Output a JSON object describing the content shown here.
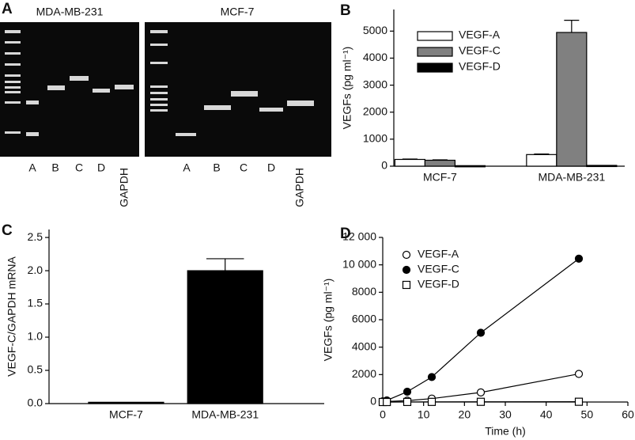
{
  "gel_panel": {
    "panel_label": "A",
    "groups": [
      {
        "title": "MDA-MB-231",
        "lanes": [
          "A",
          "B",
          "C",
          "D",
          "GAPDH"
        ]
      },
      {
        "title": "MCF-7",
        "lanes": [
          "A",
          "B",
          "C",
          "D",
          "GAPDH"
        ]
      }
    ]
  },
  "chart_data": [
    {
      "type": "bar",
      "panel_label": "B",
      "y_label": "VEGFs (pg ml⁻¹)",
      "categories": [
        "MCF-7",
        "MDA-MB-231"
      ],
      "series": [
        {
          "name": "VEGF-A",
          "color": "#ffffff",
          "values": [
            250,
            430
          ],
          "errors": [
            15,
            20
          ]
        },
        {
          "name": "VEGF-C",
          "color": "#808080",
          "values": [
            220,
            4950
          ],
          "errors": [
            15,
            450
          ]
        },
        {
          "name": "VEGF-D",
          "color": "#000000",
          "values": [
            20,
            30
          ],
          "errors": [
            0,
            0
          ]
        }
      ],
      "ylim": [
        0,
        5800
      ],
      "yticks": [
        0,
        1000,
        2000,
        3000,
        4000,
        5000
      ]
    },
    {
      "type": "bar",
      "panel_label": "C",
      "y_label": "VEGF-C/GAPDH mRNA",
      "categories": [
        "MCF-7",
        "MDA-MB-231"
      ],
      "series": [
        {
          "color": "#000000",
          "values": [
            0.02,
            2.0
          ],
          "errors": [
            0,
            0.18
          ]
        }
      ],
      "ylim": [
        0,
        2.62
      ],
      "yticks": [
        {
          "value": 0,
          "label": "0.0"
        },
        {
          "value": 0.5,
          "label": "0.5"
        },
        {
          "value": 1,
          "label": "1.0"
        },
        {
          "value": 1.5,
          "label": "1.5"
        },
        {
          "value": 2,
          "label": "2.0"
        },
        {
          "value": 2.5,
          "label": "2.5"
        }
      ]
    },
    {
      "type": "line",
      "panel_label": "D",
      "y_label": "VEGFs (pg ml⁻¹)",
      "x_label": "Time (h)",
      "x": [
        0,
        1,
        6,
        12,
        24,
        48
      ],
      "series": [
        {
          "name": "VEGF-A",
          "marker": "open-circle",
          "color": "#000000",
          "values": [
            20,
            40,
            100,
            250,
            700,
            2050
          ]
        },
        {
          "name": "VEGF-C",
          "marker": "filled-circle",
          "color": "#000000",
          "values": [
            50,
            120,
            750,
            1820,
            5050,
            10450
          ]
        },
        {
          "name": "VEGF-D",
          "marker": "open-square",
          "color": "#000000",
          "values": [
            0,
            0,
            5,
            10,
            15,
            20
          ]
        }
      ],
      "xlim": [
        0,
        60
      ],
      "xticks": [
        0,
        10,
        20,
        30,
        40,
        50,
        60
      ],
      "ylim": [
        0,
        12000
      ],
      "yticks": [
        0,
        2000,
        4000,
        6000,
        8000,
        {
          "value": 10000,
          "label": "10 000"
        },
        {
          "value": 12000,
          "label": "12 000"
        }
      ]
    }
  ]
}
